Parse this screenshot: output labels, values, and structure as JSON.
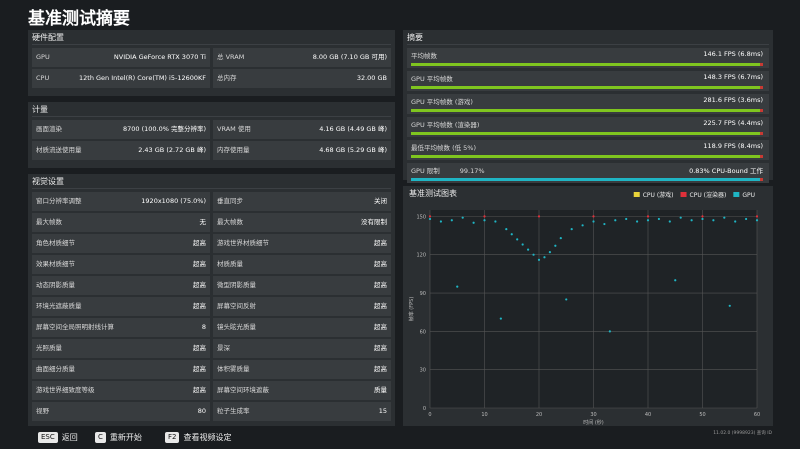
{
  "header": {
    "title": "基准测试摘要"
  },
  "hardware": {
    "title": "硬件配置",
    "rows": [
      [
        "GPU",
        "NVIDIA GeForce RTX 3070 Ti",
        "总 VRAM",
        "8.00 GB (7.10 GB 可用)"
      ],
      [
        "CPU",
        "12th Gen Intel(R) Core(TM) i5-12600KF",
        "总内存",
        "32.00 GB"
      ]
    ]
  },
  "metrics": {
    "title": "计量",
    "rows": [
      [
        "画面渲染",
        "8700 (100.0% 完整分辨率)",
        "VRAM 使用",
        "4.16 GB (4.49 GB 峰)"
      ],
      [
        "材质流送使用量",
        "2.43 GB (2.72 GB 峰)",
        "内存使用量",
        "4.68 GB (5.29 GB 峰)"
      ]
    ]
  },
  "visual": {
    "title": "视觉设置",
    "rows": [
      [
        "窗口分辨率调整",
        "1920x1080 (75.0%)",
        "垂直同步",
        "关闭"
      ],
      [
        "最大帧数",
        "无",
        "最大帧数",
        "没有限制"
      ],
      [
        "角色材质细节",
        "超高",
        "游戏世界材质细节",
        "超高"
      ],
      [
        "效果材质细节",
        "超高",
        "材质质量",
        "超高"
      ],
      [
        "动态阴影质量",
        "超高",
        "微型阴影质量",
        "超高"
      ],
      [
        "环境光遮蔽质量",
        "超高",
        "屏幕空间反射",
        "超高"
      ],
      [
        "屏幕空间全局照明射线计算",
        "8",
        "镜头眩光质量",
        "超高"
      ],
      [
        "光照质量",
        "超高",
        "景深",
        "超高"
      ],
      [
        "曲面细分质量",
        "超高",
        "体积雾质量",
        "超高"
      ],
      [
        "游戏世界细致度等级",
        "超高",
        "屏幕空间环境遮蔽",
        "质量"
      ],
      [
        "视野",
        "80",
        "粒子生成率",
        "15"
      ]
    ]
  },
  "summary": {
    "title": "摘要",
    "rows": [
      {
        "label": "平均帧数",
        "value": "146.1 FPS (6.8ms)"
      },
      {
        "label": "GPU 平均帧数",
        "value": "148.3 FPS (6.7ms)"
      },
      {
        "label": "GPU 平均帧数 (游戏)",
        "value": "281.6 FPS (3.6ms)"
      },
      {
        "label": "GPU 平均帧数 (渲染器)",
        "value": "225.7 FPS (4.4ms)"
      },
      {
        "label": "最低平均帧数 (低 5%)",
        "value": "118.9 FPS (8.4ms)"
      }
    ],
    "gpu_limit": {
      "label": "GPU 限制",
      "value": "99.17%",
      "cpu_bound": "0.83% CPU-Bound 工作"
    }
  },
  "chart_data": {
    "type": "scatter",
    "title": "基准测试图表",
    "x_label": "时间 (秒)",
    "y_label": "帧率 (FPS)",
    "xlim": [
      0,
      60
    ],
    "xticks": [
      0,
      10,
      20,
      30,
      40,
      50,
      60
    ],
    "ylim": [
      0,
      155
    ],
    "yticks": [
      0,
      30,
      60,
      90,
      120,
      150
    ],
    "grid": true,
    "series": [
      {
        "name": "CPU (游戏)",
        "color": "#e8d33a",
        "x": [],
        "values": []
      },
      {
        "name": "CPU (渲染器)",
        "color": "#e0303a",
        "x": [
          0,
          10,
          20,
          30,
          40,
          50,
          60
        ],
        "values": [
          150,
          150,
          150,
          150,
          150,
          150,
          150
        ]
      },
      {
        "name": "GPU",
        "color": "#1fb5c4",
        "x": [
          0,
          2,
          4,
          6,
          8,
          10,
          12,
          14,
          15,
          16,
          17,
          18,
          19,
          20,
          21,
          22,
          23,
          24,
          26,
          28,
          30,
          32,
          34,
          36,
          38,
          40,
          42,
          44,
          46,
          48,
          50,
          52,
          54,
          56,
          58,
          60,
          5,
          13,
          25,
          33,
          45,
          55
        ],
        "values": [
          148,
          146,
          147,
          149,
          145,
          147,
          146,
          140,
          136,
          132,
          128,
          124,
          120,
          116,
          118,
          122,
          127,
          133,
          140,
          143,
          146,
          144,
          147,
          148,
          146,
          147,
          148,
          146,
          149,
          147,
          148,
          147,
          149,
          146,
          148,
          147,
          95,
          70,
          85,
          60,
          100,
          80
        ]
      }
    ]
  },
  "footer": {
    "keys": [
      {
        "key": "ESC",
        "label": "返回"
      },
      {
        "key": "C",
        "label": "重新开始"
      },
      {
        "key": "F2",
        "label": "查看视频设定"
      }
    ],
    "build": "11.02.0 (9998923) 查询 ID"
  }
}
